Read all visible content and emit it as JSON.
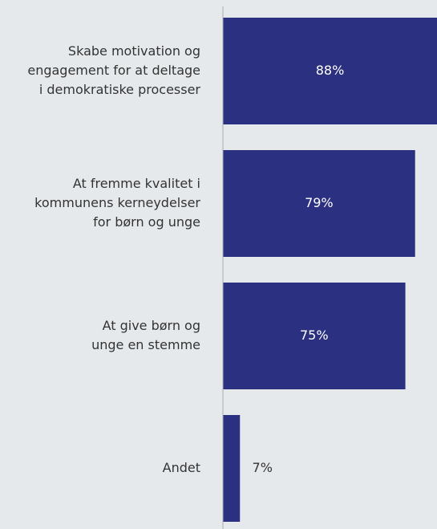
{
  "chart_data": {
    "type": "bar",
    "orientation": "horizontal",
    "categories": [
      [
        "Skabe motivation og",
        "engagement for at deltage",
        "i demokratiske processer"
      ],
      [
        "At fremme kvalitet i",
        "kommunens kerneydelser",
        "for børn og unge"
      ],
      [
        "At give børn og",
        "unge en stemme"
      ],
      [
        "Andet"
      ]
    ],
    "values": [
      88,
      79,
      75,
      7
    ],
    "value_labels": [
      "88%",
      "79%",
      "75%",
      "7%"
    ],
    "color": "#2b3180"
  }
}
